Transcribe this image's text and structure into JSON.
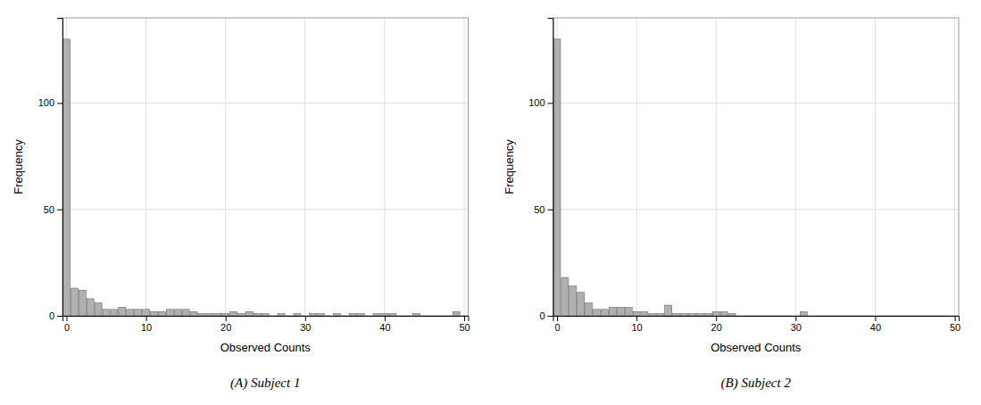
{
  "chart_data": [
    {
      "type": "bar",
      "title": "(A) Subject 1",
      "xlabel": "Observed Counts",
      "ylabel": "Frequency",
      "x": [
        0,
        1,
        2,
        3,
        4,
        5,
        6,
        7,
        8,
        9,
        10,
        11,
        12,
        13,
        14,
        15,
        16,
        17,
        18,
        19,
        20,
        21,
        22,
        23,
        24,
        25,
        26,
        27,
        28,
        29,
        30,
        31,
        32,
        33,
        34,
        35,
        36,
        37,
        38,
        39,
        40,
        41,
        42,
        43,
        44,
        45,
        46,
        47,
        48,
        49
      ],
      "values": [
        130,
        13,
        12,
        8,
        6,
        3,
        3,
        4,
        3,
        3,
        3,
        2,
        2,
        3,
        3,
        3,
        2,
        1,
        1,
        1,
        1,
        2,
        1,
        2,
        1,
        1,
        0,
        1,
        0,
        1,
        0,
        1,
        1,
        0,
        1,
        0,
        1,
        1,
        0,
        1,
        1,
        1,
        0,
        0,
        1,
        0,
        0,
        0,
        0,
        2
      ],
      "color": "#b0b0b0",
      "xlim": [
        -0.5,
        50.5
      ],
      "ylim": [
        0,
        140
      ],
      "xticks": [
        0,
        10,
        20,
        30,
        40,
        50
      ],
      "yticks": [
        0,
        50,
        100
      ],
      "grid": true
    },
    {
      "type": "bar",
      "title": "(B) Subject 2",
      "xlabel": "Observed Counts",
      "ylabel": "Frequency",
      "x": [
        0,
        1,
        2,
        3,
        4,
        5,
        6,
        7,
        8,
        9,
        10,
        11,
        12,
        13,
        14,
        15,
        16,
        17,
        18,
        19,
        20,
        21,
        22,
        23,
        24,
        25,
        26,
        27,
        28,
        29,
        30,
        31,
        32,
        33,
        34,
        35,
        36,
        37,
        38,
        39,
        40,
        41,
        42,
        43,
        44,
        45,
        46,
        47,
        48,
        49
      ],
      "values": [
        130,
        18,
        14,
        11,
        6,
        3,
        3,
        4,
        4,
        4,
        2,
        2,
        1,
        1,
        5,
        1,
        1,
        1,
        1,
        1,
        2,
        2,
        1,
        0,
        0,
        0,
        0,
        0,
        0,
        0,
        0,
        2,
        0,
        0,
        0,
        0,
        0,
        0,
        0,
        0,
        0,
        0,
        0,
        0,
        0,
        0,
        0,
        0,
        0,
        0
      ],
      "color": "#b0b0b0",
      "xlim": [
        -0.5,
        50.5
      ],
      "ylim": [
        0,
        140
      ],
      "xticks": [
        0,
        10,
        20,
        30,
        40,
        50
      ],
      "yticks": [
        0,
        50,
        100
      ],
      "grid": true
    }
  ]
}
